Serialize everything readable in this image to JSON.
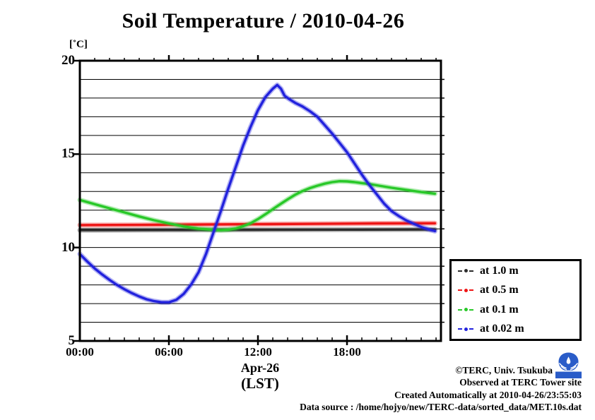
{
  "title": "Soil Temperature / 2010-04-26",
  "axes": {
    "y": {
      "unit": "[˚C]",
      "min": 5,
      "max": 20,
      "major_ticks": [
        20,
        15,
        10,
        5
      ],
      "minor_step": 1
    },
    "x": {
      "domain_hours": [
        0,
        24.33
      ],
      "minor_step_hours": 1,
      "major_ticks": [
        {
          "h": 0,
          "label": "00:00"
        },
        {
          "h": 6,
          "label": "06:00"
        },
        {
          "h": 12,
          "label": "12:00"
        },
        {
          "h": 18,
          "label": "18:00"
        }
      ],
      "date_label": "Apr-26",
      "tz_label": "(LST)"
    }
  },
  "chart_data": {
    "type": "line",
    "title": "Soil Temperature / 2010-04-26",
    "xlabel": "Apr-26 (LST)",
    "ylabel": "[˚C]",
    "ylim": [
      5,
      20
    ],
    "xlim_hours": [
      0,
      24.33
    ],
    "x_tick_labels": [
      "00:00",
      "06:00",
      "12:00",
      "18:00"
    ],
    "grid": "horizontal lines every 1 degC",
    "legend_position": "outside lower right",
    "series": [
      {
        "name": "at 1.0 m",
        "depth_m": 1.0,
        "color": "#2b2b2b",
        "points": [
          [
            0,
            10.93
          ],
          [
            6,
            10.94
          ],
          [
            12,
            10.95
          ],
          [
            18,
            10.96
          ],
          [
            23.92,
            10.97
          ]
        ]
      },
      {
        "name": "at 0.5 m",
        "depth_m": 0.5,
        "color": "#ee1515",
        "points": [
          [
            0,
            11.2
          ],
          [
            4,
            11.21
          ],
          [
            8,
            11.23
          ],
          [
            12,
            11.25
          ],
          [
            16,
            11.27
          ],
          [
            20,
            11.29
          ],
          [
            23.92,
            11.3
          ]
        ]
      },
      {
        "name": "at 0.1 m",
        "depth_m": 0.1,
        "color": "#28c828",
        "points": [
          [
            0,
            12.55
          ],
          [
            1,
            12.32
          ],
          [
            2,
            12.1
          ],
          [
            3,
            11.88
          ],
          [
            4,
            11.66
          ],
          [
            5,
            11.46
          ],
          [
            6,
            11.29
          ],
          [
            7,
            11.13
          ],
          [
            8,
            11.01
          ],
          [
            9,
            10.95
          ],
          [
            9.5,
            10.93
          ],
          [
            10,
            10.95
          ],
          [
            10.5,
            11.02
          ],
          [
            11,
            11.14
          ],
          [
            11.5,
            11.3
          ],
          [
            12,
            11.52
          ],
          [
            12.5,
            11.78
          ],
          [
            13,
            12.05
          ],
          [
            13.5,
            12.32
          ],
          [
            14,
            12.58
          ],
          [
            14.5,
            12.82
          ],
          [
            15,
            13.02
          ],
          [
            15.5,
            13.18
          ],
          [
            16,
            13.31
          ],
          [
            16.5,
            13.42
          ],
          [
            17,
            13.5
          ],
          [
            17.5,
            13.55
          ],
          [
            18,
            13.54
          ],
          [
            18.5,
            13.5
          ],
          [
            19,
            13.45
          ],
          [
            19.5,
            13.4
          ],
          [
            20,
            13.33
          ],
          [
            21,
            13.2
          ],
          [
            22,
            13.08
          ],
          [
            23,
            12.97
          ],
          [
            23.92,
            12.88
          ]
        ]
      },
      {
        "name": "at 0.02 m",
        "depth_m": 0.02,
        "color": "#2222dd",
        "points": [
          [
            0,
            9.65
          ],
          [
            0.5,
            9.25
          ],
          [
            1,
            8.88
          ],
          [
            1.5,
            8.56
          ],
          [
            2,
            8.27
          ],
          [
            2.5,
            8.0
          ],
          [
            3,
            7.77
          ],
          [
            3.5,
            7.56
          ],
          [
            4,
            7.38
          ],
          [
            4.5,
            7.23
          ],
          [
            5,
            7.13
          ],
          [
            5.5,
            7.07
          ],
          [
            6,
            7.07
          ],
          [
            6.5,
            7.2
          ],
          [
            7,
            7.52
          ],
          [
            7.5,
            8.02
          ],
          [
            8,
            8.68
          ],
          [
            8.5,
            9.65
          ],
          [
            9,
            10.8
          ],
          [
            9.5,
            11.95
          ],
          [
            10,
            13.15
          ],
          [
            10.5,
            14.3
          ],
          [
            11,
            15.45
          ],
          [
            11.5,
            16.45
          ],
          [
            12,
            17.35
          ],
          [
            12.5,
            18.05
          ],
          [
            13,
            18.5
          ],
          [
            13.3,
            18.7
          ],
          [
            13.55,
            18.5
          ],
          [
            13.8,
            18.12
          ],
          [
            14.1,
            17.95
          ],
          [
            14.5,
            17.75
          ],
          [
            15,
            17.55
          ],
          [
            15.5,
            17.3
          ],
          [
            16,
            17.0
          ],
          [
            16.5,
            16.55
          ],
          [
            17,
            16.1
          ],
          [
            17.5,
            15.6
          ],
          [
            18,
            15.1
          ],
          [
            18.5,
            14.5
          ],
          [
            19,
            13.9
          ],
          [
            19.5,
            13.35
          ],
          [
            20,
            12.85
          ],
          [
            20.5,
            12.35
          ],
          [
            21,
            11.95
          ],
          [
            21.5,
            11.68
          ],
          [
            22,
            11.45
          ],
          [
            22.5,
            11.27
          ],
          [
            23,
            11.1
          ],
          [
            23.5,
            10.97
          ],
          [
            23.92,
            10.88
          ]
        ]
      }
    ]
  },
  "legend": {
    "items": [
      "at 1.0 m",
      "at 0.5 m",
      "at 0.1 m",
      "at 0.02 m"
    ]
  },
  "footer": {
    "lines": [
      "©TERC, Univ. Tsukuba",
      "Observed at TERC Tower site",
      "Created Automatically at 2010-04-26/23:55:03",
      "Data source : /home/hojyo/new/TERC-data/sorted_data/MET.10s.dat"
    ]
  },
  "logo": {
    "text": "TERC",
    "color": "#2a5cc8"
  }
}
